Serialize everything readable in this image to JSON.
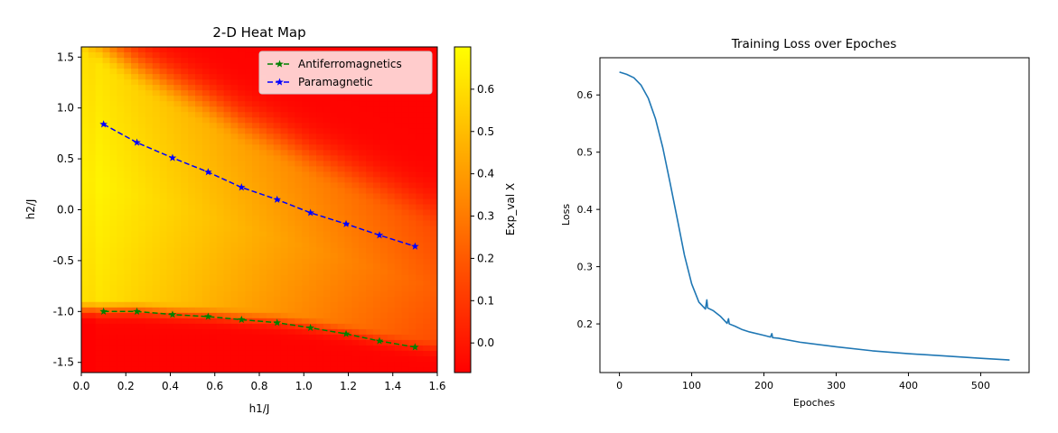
{
  "chart_data": [
    {
      "type": "heatmap",
      "title": "2-D Heat Map",
      "xlabel": "h1/J",
      "ylabel": "h2/J",
      "colorbar_label": "Exp_val X",
      "xlim": [
        0.0,
        1.6
      ],
      "ylim": [
        -1.6,
        1.6
      ],
      "x_ticks": [
        "0.0",
        "0.2",
        "0.4",
        "0.6",
        "0.8",
        "1.0",
        "1.2",
        "1.4",
        "1.6"
      ],
      "y_ticks": [
        "1.5",
        "1.0",
        "0.5",
        "0.0",
        "-0.5",
        "-1.0",
        "-1.5"
      ],
      "colorbar_range": [
        -0.07,
        0.7
      ],
      "colorbar_ticks": [
        "0.6",
        "0.5",
        "0.4",
        "0.3",
        "0.2",
        "0.1",
        "0.0"
      ],
      "colormap": {
        "low": "#ff0000",
        "high": "#ffff00"
      },
      "legend_position": "top-right",
      "series": [
        {
          "name": "Antiferromagnetics",
          "color": "#008000",
          "style": "dashed",
          "marker": "star",
          "x": [
            0.1,
            0.25,
            0.41,
            0.57,
            0.72,
            0.88,
            1.03,
            1.19,
            1.34,
            1.5
          ],
          "y": [
            -1.0,
            -1.0,
            -1.03,
            -1.05,
            -1.08,
            -1.11,
            -1.16,
            -1.22,
            -1.29,
            -1.35
          ]
        },
        {
          "name": "Paramagnetic",
          "color": "#0000ff",
          "style": "dashed",
          "marker": "star",
          "x": [
            0.1,
            0.25,
            0.41,
            0.57,
            0.72,
            0.88,
            1.03,
            1.19,
            1.34,
            1.5
          ],
          "y": [
            0.84,
            0.66,
            0.51,
            0.37,
            0.22,
            0.1,
            -0.03,
            -0.14,
            -0.25,
            -0.36
          ]
        }
      ]
    },
    {
      "type": "line",
      "title": "Training Loss over Epoches",
      "xlabel": "Epoches",
      "ylabel": "Loss",
      "xlim": [
        -27,
        567
      ],
      "ylim": [
        0.115,
        0.665
      ],
      "x_ticks": [
        "0",
        "100",
        "200",
        "300",
        "400",
        "500"
      ],
      "y_ticks": [
        "0.6",
        "0.5",
        "0.4",
        "0.3",
        "0.2"
      ],
      "series": [
        {
          "color": "#1f77b4",
          "x": [
            0,
            10,
            20,
            30,
            40,
            50,
            60,
            70,
            80,
            90,
            100,
            110,
            119,
            121,
            122,
            130,
            140,
            149,
            151,
            152,
            160,
            170,
            180,
            200,
            209,
            211,
            212,
            220,
            250,
            300,
            350,
            400,
            450,
            500,
            540
          ],
          "y": [
            0.64,
            0.636,
            0.63,
            0.617,
            0.594,
            0.558,
            0.508,
            0.447,
            0.384,
            0.32,
            0.27,
            0.238,
            0.226,
            0.242,
            0.228,
            0.223,
            0.213,
            0.201,
            0.209,
            0.2,
            0.196,
            0.19,
            0.186,
            0.18,
            0.177,
            0.183,
            0.176,
            0.175,
            0.168,
            0.16,
            0.153,
            0.148,
            0.144,
            0.14,
            0.137
          ]
        }
      ]
    }
  ]
}
